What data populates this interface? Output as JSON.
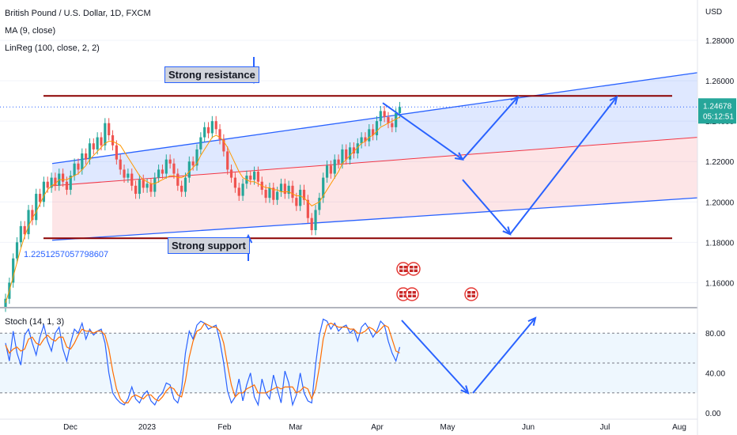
{
  "legend": {
    "title": "British Pound / U.S. Dollar, 1D, FXCM",
    "ma": "MA (9, close)",
    "linreg": "LinReg (100, close, 2, 2)"
  },
  "stoch_label": "Stoch (14, 1, 3)",
  "price_label": {
    "value": "1.24678",
    "time": "05:12:51"
  },
  "annotations": {
    "resistance": "Strong resistance",
    "support": "Strong support",
    "linreg_value": "1.2251257057798607"
  },
  "colors": {
    "up": "#26a69a",
    "down": "#ef5350",
    "ma": "#ff9800",
    "channel": "#2962ff",
    "resistance": "#8b0000",
    "stoch_k": "#2962ff",
    "stoch_d": "#ff6d00"
  },
  "chart_data": [
    {
      "type": "candlestick",
      "title": "British Pound / U.S. Dollar, 1D, FXCM",
      "ylabel": "USD",
      "yticks": [
        "1.28000",
        "1.26000",
        "1.24000",
        "1.22000",
        "1.20000",
        "1.18000",
        "1.16000"
      ],
      "ylim": [
        1.148,
        1.3
      ],
      "xticks": [
        "Dec",
        "2023",
        "Feb",
        "Mar",
        "Apr",
        "May",
        "Jun",
        "Jul",
        "Aug"
      ],
      "closes": [
        1.152,
        1.16,
        1.172,
        1.18,
        1.188,
        1.184,
        1.196,
        1.191,
        1.204,
        1.2,
        1.21,
        1.207,
        1.212,
        1.208,
        1.214,
        1.21,
        1.206,
        1.213,
        1.219,
        1.216,
        1.224,
        1.221,
        1.229,
        1.226,
        1.232,
        1.228,
        1.239,
        1.233,
        1.228,
        1.221,
        1.216,
        1.212,
        1.214,
        1.208,
        1.204,
        1.211,
        1.207,
        1.209,
        1.205,
        1.212,
        1.216,
        1.214,
        1.221,
        1.219,
        1.214,
        1.208,
        1.205,
        1.212,
        1.22,
        1.218,
        1.226,
        1.232,
        1.237,
        1.234,
        1.24,
        1.236,
        1.231,
        1.225,
        1.216,
        1.212,
        1.207,
        1.203,
        1.209,
        1.213,
        1.211,
        1.215,
        1.21,
        1.206,
        1.202,
        1.207,
        1.201,
        1.205,
        1.209,
        1.204,
        1.208,
        1.202,
        1.198,
        1.206,
        1.201,
        1.192,
        1.186,
        1.196,
        1.202,
        1.212,
        1.218,
        1.214,
        1.221,
        1.219,
        1.226,
        1.221,
        1.227,
        1.224,
        1.229,
        1.232,
        1.23,
        1.236,
        1.233,
        1.24,
        1.245,
        1.242,
        1.239,
        1.237,
        1.244,
        1.247
      ],
      "ma_values": [
        1.15,
        1.156,
        1.163,
        1.17,
        1.177,
        1.183,
        1.188,
        1.192,
        1.195,
        1.199,
        1.203,
        1.206,
        1.208,
        1.209,
        1.211,
        1.211,
        1.211,
        1.212,
        1.213,
        1.214,
        1.216,
        1.218,
        1.221,
        1.223,
        1.225,
        1.227,
        1.229,
        1.23,
        1.23,
        1.229,
        1.228,
        1.225,
        1.222,
        1.219,
        1.216,
        1.213,
        1.211,
        1.21,
        1.209,
        1.209,
        1.21,
        1.211,
        1.212,
        1.213,
        1.213,
        1.212,
        1.212,
        1.213,
        1.215,
        1.217,
        1.219,
        1.223,
        1.226,
        1.229,
        1.232,
        1.233,
        1.232,
        1.23,
        1.227,
        1.223,
        1.219,
        1.215,
        1.212,
        1.211,
        1.21,
        1.21,
        1.209,
        1.208,
        1.207,
        1.207,
        1.206,
        1.206,
        1.205,
        1.205,
        1.205,
        1.204,
        1.203,
        1.203,
        1.202,
        1.2,
        1.198,
        1.199,
        1.2,
        1.203,
        1.206,
        1.209,
        1.212,
        1.215,
        1.219,
        1.221,
        1.223,
        1.225,
        1.227,
        1.229,
        1.23,
        1.232,
        1.233,
        1.235,
        1.237,
        1.238,
        1.239,
        1.24,
        1.241,
        1.242
      ],
      "regression_channel": {
        "start": [
          1.219,
          1.208,
          1.181
        ],
        "end": [
          1.264,
          1.232,
          1.202
        ]
      },
      "horizontal_levels": {
        "resistance": 1.2525,
        "support": 1.182
      },
      "projection_arrows": [
        [
          1.249,
          1.221
        ],
        [
          1.221,
          1.252
        ],
        [
          1.211,
          1.184
        ],
        [
          1.184,
          1.252
        ]
      ]
    },
    {
      "type": "line",
      "title": "Stoch (14, 1, 3)",
      "yticks": [
        "80.00",
        "40.00",
        "0.00"
      ],
      "ylim": [
        0,
        100
      ],
      "bands": [
        20,
        50,
        80
      ],
      "series": [
        {
          "values": [
            70,
            52,
            82,
            60,
            48,
            78,
            84,
            70,
            58,
            76,
            88,
            72,
            62,
            80,
            86,
            64,
            52,
            70,
            84,
            80,
            90,
            74,
            84,
            78,
            82,
            84,
            70,
            40,
            20,
            14,
            10,
            8,
            14,
            26,
            14,
            10,
            18,
            22,
            12,
            8,
            16,
            20,
            30,
            28,
            14,
            10,
            24,
            60,
            82,
            74,
            88,
            92,
            90,
            84,
            86,
            88,
            72,
            50,
            22,
            10,
            16,
            34,
            12,
            28,
            40,
            16,
            8,
            34,
            20,
            14,
            38,
            24,
            10,
            42,
            30,
            8,
            18,
            40,
            20,
            12,
            10,
            48,
            78,
            94,
            92,
            84,
            90,
            82,
            86,
            88,
            80,
            84,
            72,
            86,
            90,
            84,
            76,
            82,
            92,
            88,
            72,
            60,
            52,
            66
          ]
        },
        {
          "values": [
            68,
            60,
            64,
            66,
            62,
            64,
            74,
            76,
            70,
            68,
            74,
            78,
            74,
            72,
            76,
            76,
            66,
            64,
            70,
            78,
            84,
            82,
            82,
            80,
            82,
            82,
            78,
            64,
            42,
            24,
            14,
            10,
            10,
            16,
            18,
            16,
            14,
            18,
            18,
            14,
            12,
            16,
            22,
            26,
            24,
            18,
            16,
            32,
            56,
            72,
            82,
            84,
            90,
            88,
            86,
            86,
            82,
            70,
            48,
            28,
            16,
            20,
            20,
            24,
            26,
            28,
            20,
            20,
            20,
            22,
            24,
            26,
            24,
            26,
            26,
            26,
            20,
            22,
            26,
            24,
            14,
            24,
            46,
            74,
            88,
            90,
            88,
            86,
            86,
            86,
            84,
            84,
            80,
            80,
            82,
            86,
            84,
            80,
            84,
            88,
            86,
            74,
            62,
            60
          ]
        }
      ]
    }
  ]
}
